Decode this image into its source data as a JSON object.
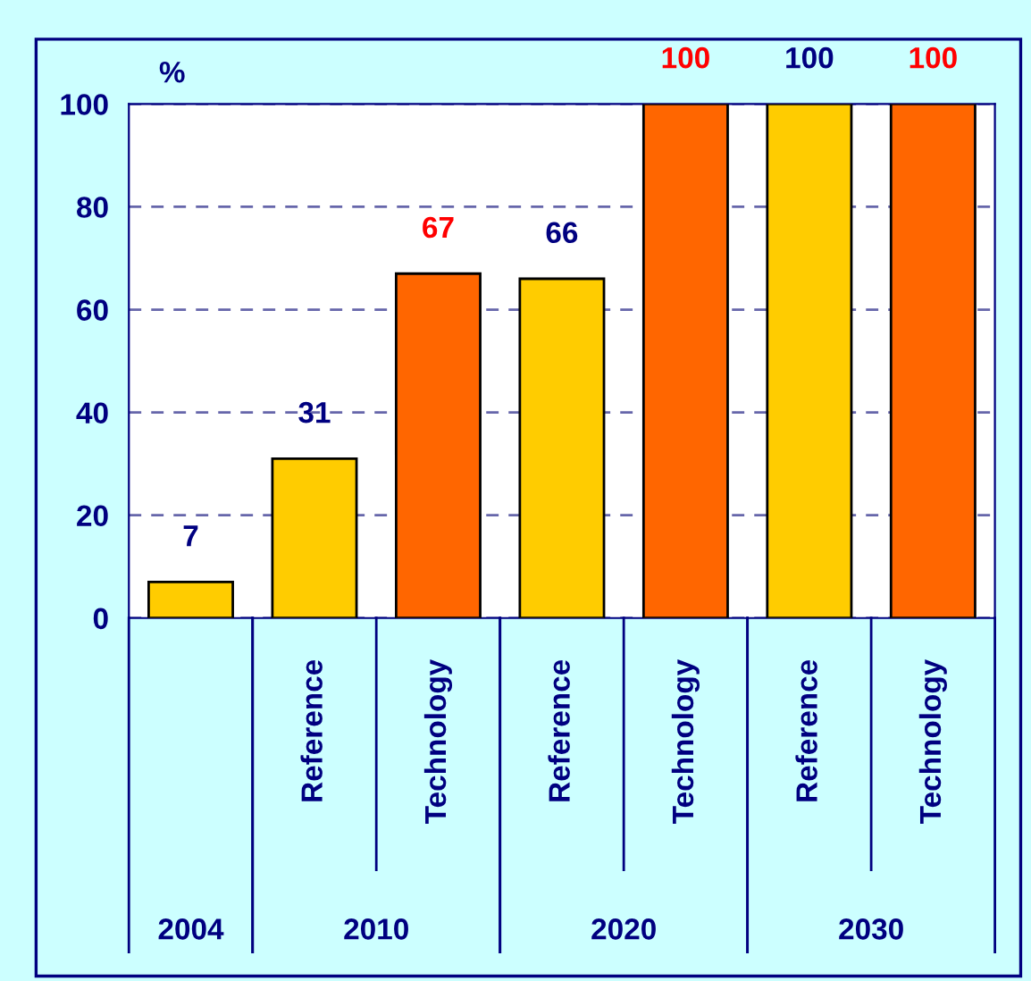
{
  "chart_data": {
    "type": "bar",
    "ylabel": "%",
    "categories": [
      null,
      "Reference",
      "Technology",
      "Reference",
      "Technology",
      "Reference",
      "Technology"
    ],
    "values": [
      7,
      31,
      67,
      66,
      100,
      100,
      100
    ],
    "colors": [
      "#ffcc00",
      "#ffcc00",
      "#ff6600",
      "#ffcc00",
      "#ff6600",
      "#ffcc00",
      "#ff6600"
    ],
    "data_labels": true,
    "annotations": [
      "2004",
      "2010",
      "2020",
      "2030"
    ],
    "ylim": [
      0,
      100
    ],
    "yticks": [
      0,
      20,
      40,
      60,
      80,
      100
    ],
    "grid": "y"
  }
}
